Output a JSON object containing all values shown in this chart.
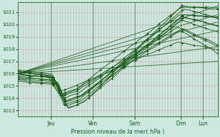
{
  "bg_color": "#cce8e0",
  "grid_color": "#c8a8a8",
  "line_color": "#1a5c1a",
  "xlabel_text": "Pression niveau de la mer( hPa )",
  "ylim": [
    1012.5,
    1021.8
  ],
  "yticks": [
    1013,
    1014,
    1015,
    1016,
    1017,
    1018,
    1019,
    1020,
    1021
  ],
  "day_labels": [
    "Jeu",
    "Ven",
    "Sam",
    "Dim",
    "Lun"
  ],
  "day_positions": [
    0.165,
    0.375,
    0.585,
    0.815,
    0.925
  ],
  "n_points": 120
}
